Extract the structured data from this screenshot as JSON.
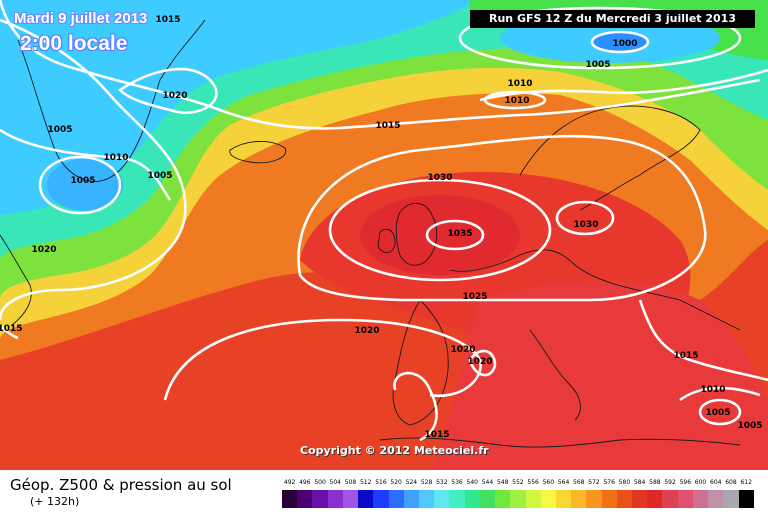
{
  "header": {
    "date": "Mardi 9 juillet 2013",
    "local_time": "2:00 locale",
    "run_info": "Run GFS 12 Z du Mercredi 3 juillet 2013"
  },
  "copyright": "Copyright © 2012 Meteociel.fr",
  "footer": {
    "product": "Géop. Z500 & pression au sol",
    "lead_time": "(+ 132h)"
  },
  "legend": {
    "ticks": [
      "492",
      "496",
      "500",
      "504",
      "508",
      "512",
      "516",
      "520",
      "524",
      "528",
      "532",
      "536",
      "540",
      "544",
      "548",
      "552",
      "556",
      "560",
      "564",
      "568",
      "572",
      "576",
      "580",
      "584",
      "588",
      "592",
      "596",
      "600",
      "604",
      "608",
      "612"
    ],
    "colors": [
      "#2a0038",
      "#4a0070",
      "#6a10a8",
      "#8a30d0",
      "#9f55e6",
      "#0a0ac8",
      "#1c3cff",
      "#2e6eff",
      "#3ea0ff",
      "#50c8ff",
      "#60e6f0",
      "#40f0c0",
      "#30e890",
      "#40e060",
      "#70e840",
      "#a0f040",
      "#d0f840",
      "#f8f840",
      "#f8d830",
      "#f8b828",
      "#f89420",
      "#f07018",
      "#e85018",
      "#e03820",
      "#e02828",
      "#e04050",
      "#e05070",
      "#d07090",
      "#c090a8",
      "#a8a8b0",
      "#000000"
    ]
  },
  "pressure_labels": [
    {
      "value": "1015"
    },
    {
      "value": "1000"
    },
    {
      "value": "1005"
    },
    {
      "value": "1020"
    },
    {
      "value": "1005"
    },
    {
      "value": "1010"
    },
    {
      "value": "1010"
    },
    {
      "value": "1005"
    },
    {
      "value": "1005"
    },
    {
      "value": "1015"
    },
    {
      "value": "1020"
    },
    {
      "value": "1030"
    },
    {
      "value": "1035"
    },
    {
      "value": "1030"
    },
    {
      "value": "1025"
    },
    {
      "value": "1020"
    },
    {
      "value": "1020"
    },
    {
      "value": "1020"
    },
    {
      "value": "1015"
    },
    {
      "value": "1015"
    },
    {
      "value": "1010"
    },
    {
      "value": "1005"
    },
    {
      "value": "1005"
    },
    {
      "value": "1015"
    },
    {
      "value": "1010"
    }
  ],
  "colors": {
    "blue_zone": "#3ecbff",
    "cyan_zone": "#40f0c0",
    "green_zone": "#40e060",
    "yellow_zone": "#f8f840",
    "orange_zone": "#f89420",
    "red_zone": "#e83828",
    "isobar": "#ffffff",
    "coast": "#1a1a1a"
  }
}
